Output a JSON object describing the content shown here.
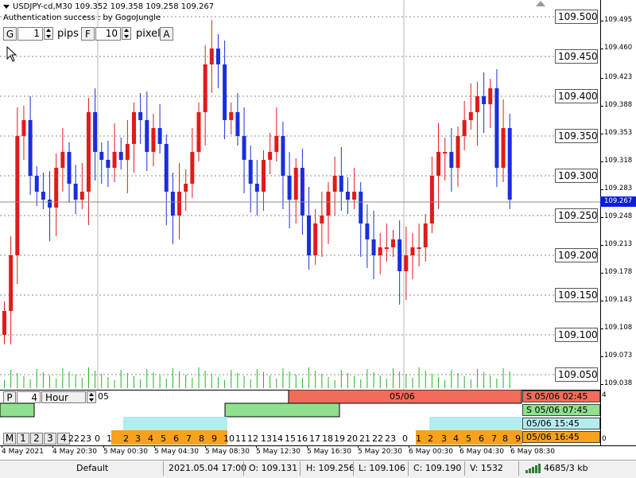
{
  "header": {
    "symbol_line": "USDJPY-cd,M30  109.352 109.358 109.258 109.267",
    "auth_line": "Authentication success : by GogoJungle"
  },
  "controls": {
    "g_button": "G",
    "pips_value": "1",
    "pips_label": "pips",
    "f_button": "F",
    "pixel_value": "10",
    "pixel_label": "pixel",
    "a_button": "A"
  },
  "price_labels": [
    "109.500",
    "109.450",
    "109.400",
    "109.350",
    "109.300",
    "109.250",
    "109.200",
    "109.150",
    "109.100",
    "109.050"
  ],
  "axis_ticks": [
    "109.495",
    "109.460",
    "109.423",
    "109.388",
    "109.353",
    "109.318",
    "109.283",
    "109.248",
    "109.213",
    "109.178",
    "109.143",
    "109.108",
    "109.073",
    "109.038"
  ],
  "current_price": "109.267",
  "panel": {
    "p_button": "P",
    "period_value": "4",
    "period_unit": "Hour",
    "marker_left": "05",
    "marker_mid": "05/06",
    "right_top": "4",
    "right_bottom": "0",
    "sessions": [
      {
        "label": "S 05/06 02:45",
        "color": "#f26b5b"
      },
      {
        "label": "S 05/06 07:45",
        "color": "#8fe08f"
      },
      {
        "label": "05/06 15:45",
        "color": "#b4ecf0"
      },
      {
        "label": "05/06 16:45",
        "color": "#f6a21a"
      }
    ],
    "mode_buttons": [
      "M",
      "1",
      "2",
      "3",
      "4"
    ],
    "hour_numbers": [
      "22",
      "23",
      "0",
      "1",
      "2",
      "3",
      "4",
      "5",
      "6",
      "7",
      "8",
      "9",
      "10",
      "11",
      "12",
      "13",
      "14",
      "15",
      "16",
      "17",
      "18",
      "19",
      "20",
      "21",
      "22",
      "23",
      "0",
      "1",
      "2",
      "3",
      "4",
      "5",
      "6",
      "7",
      "8",
      "9"
    ]
  },
  "time_axis": [
    "4 May 2021",
    "4 May 20:30",
    "5 May 00:30",
    "5 May 04:30",
    "5 May 08:30",
    "5 May 12:30",
    "5 May 16:30",
    "5 May 20:30",
    "6 May 00:30",
    "6 May 04:30",
    "6 May 08:30"
  ],
  "status_bar": {
    "profile": "Default",
    "time": "2021.05.04 17:00",
    "open": "O: 109.131",
    "high": "H: 109.256",
    "low": "L: 109.106",
    "close": "C: 109.190",
    "volume": "V: 1532",
    "traffic": "4685/3 kb"
  },
  "colors": {
    "bull": "#e01b1b",
    "bear": "#1a2ee0",
    "volume": "#22b422",
    "grid": "#b8b8b8"
  }
}
